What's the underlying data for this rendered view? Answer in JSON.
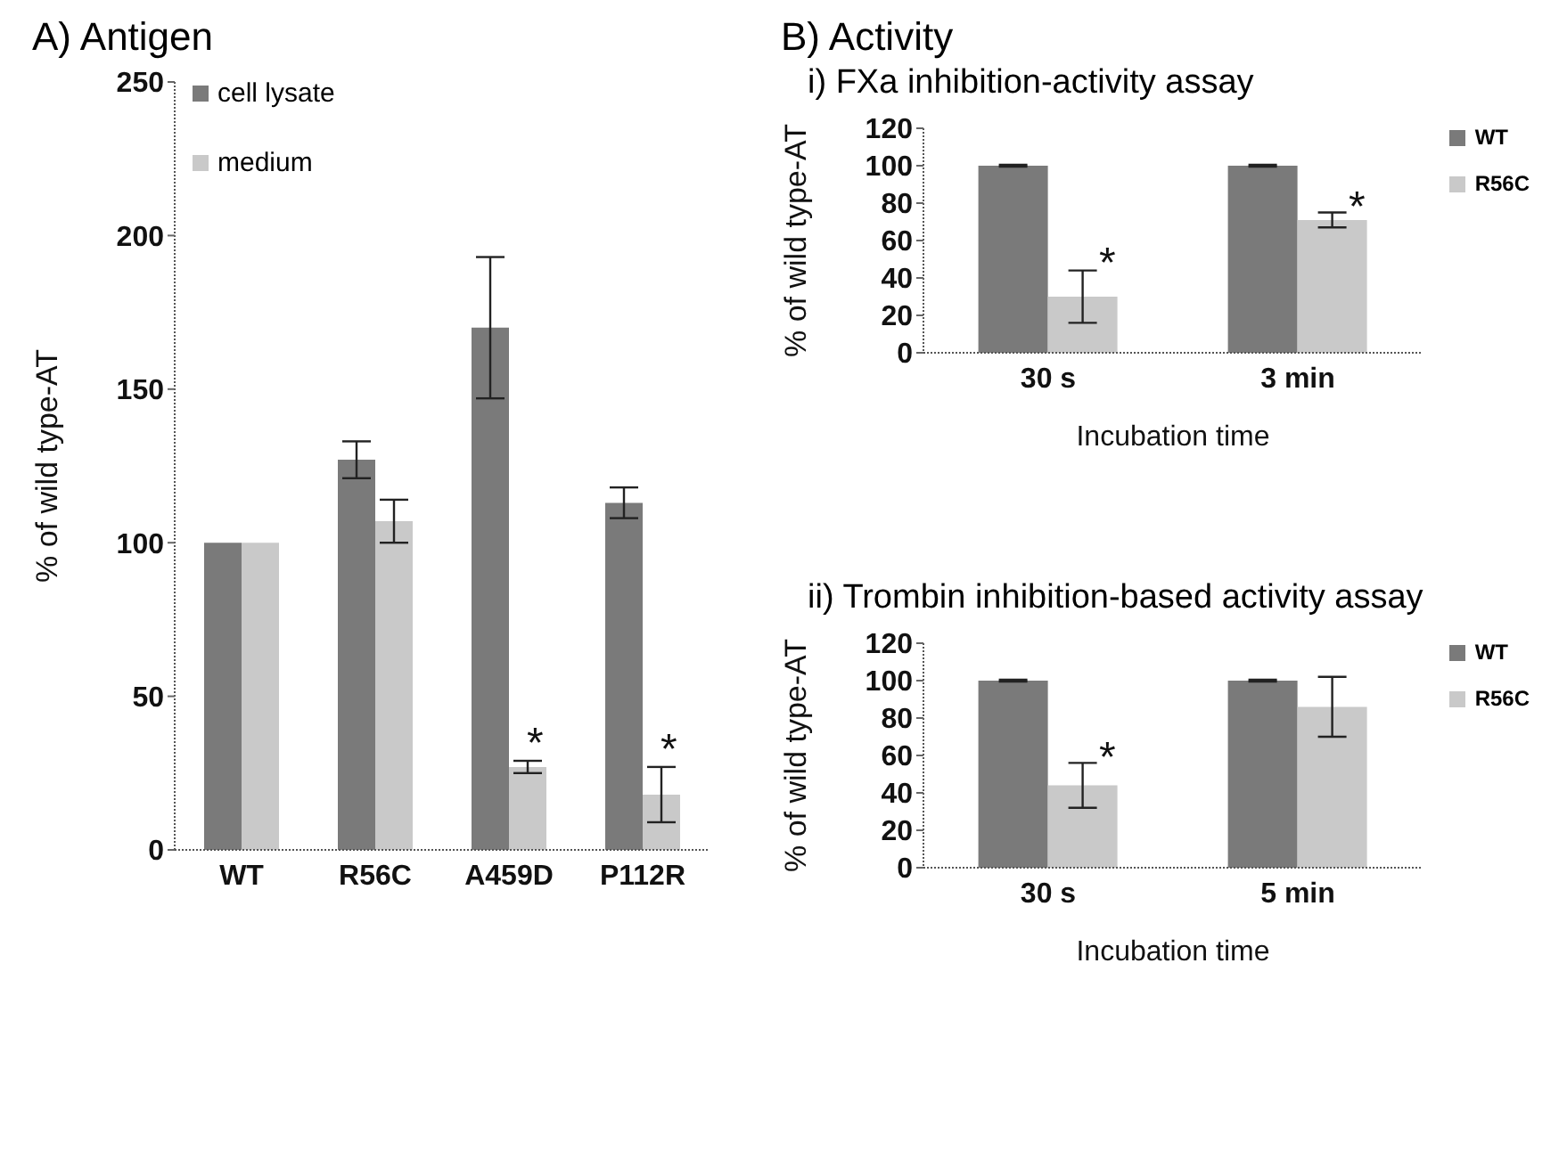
{
  "chart_data": [
    {
      "type": "bar",
      "title": "A) Antigen",
      "ylabel": "% of wild type-AT",
      "categories": [
        "WT",
        "R56C",
        "A459D",
        "P112R"
      ],
      "series": [
        {
          "name": "cell lysate",
          "color": "#7a7a7a",
          "values": [
            100,
            127,
            170,
            113
          ],
          "errors": [
            0,
            6,
            23,
            5
          ]
        },
        {
          "name": "medium",
          "color": "#c9c9c9",
          "values": [
            100,
            107,
            27,
            18
          ],
          "errors": [
            0,
            7,
            2,
            9
          ]
        }
      ],
      "ylim": [
        0,
        250
      ],
      "yticks": [
        0,
        50,
        100,
        150,
        200,
        250
      ],
      "grid": false,
      "legend": "top left",
      "annotations": [
        {
          "text": "*",
          "x": "A459D",
          "y": 37
        },
        {
          "text": "*",
          "x": "P112R",
          "y": 35
        }
      ]
    },
    {
      "type": "bar",
      "title": "B) Activity",
      "subtitle": "i) FXa inhibition-activity assay",
      "ylabel": "% of wild type-AT",
      "xlabel": "Incubation time",
      "categories": [
        "30 s",
        "3 min"
      ],
      "series": [
        {
          "name": "WT",
          "color": "#7a7a7a",
          "values": [
            100,
            100
          ],
          "errors": [
            0.5,
            0.5
          ]
        },
        {
          "name": "R56C",
          "color": "#c9c9c9",
          "values": [
            30,
            71
          ],
          "errors": [
            14,
            4
          ]
        }
      ],
      "ylim": [
        0,
        120
      ],
      "yticks": [
        0,
        20,
        40,
        60,
        80,
        100,
        120
      ],
      "grid": false,
      "legend": "top right",
      "annotations": [
        {
          "text": "*",
          "x": "30 s",
          "y": 52
        },
        {
          "text": "*",
          "x": "3 min",
          "y": 82
        }
      ]
    },
    {
      "type": "bar",
      "subtitle": "ii) Trombin inhibition-based activity assay",
      "ylabel": "% of wild type-AT",
      "xlabel": "Incubation time",
      "categories": [
        "30 s",
        "5 min"
      ],
      "series": [
        {
          "name": "WT",
          "color": "#7a7a7a",
          "values": [
            100,
            100
          ],
          "errors": [
            0.5,
            0.5
          ]
        },
        {
          "name": "R56C",
          "color": "#c9c9c9",
          "values": [
            44,
            86
          ],
          "errors": [
            12,
            16
          ]
        }
      ],
      "ylim": [
        0,
        120
      ],
      "yticks": [
        0,
        20,
        40,
        60,
        80,
        100,
        120
      ],
      "grid": false,
      "legend": "top right",
      "annotations": [
        {
          "text": "*",
          "x": "30 s",
          "y": 63
        }
      ]
    }
  ]
}
